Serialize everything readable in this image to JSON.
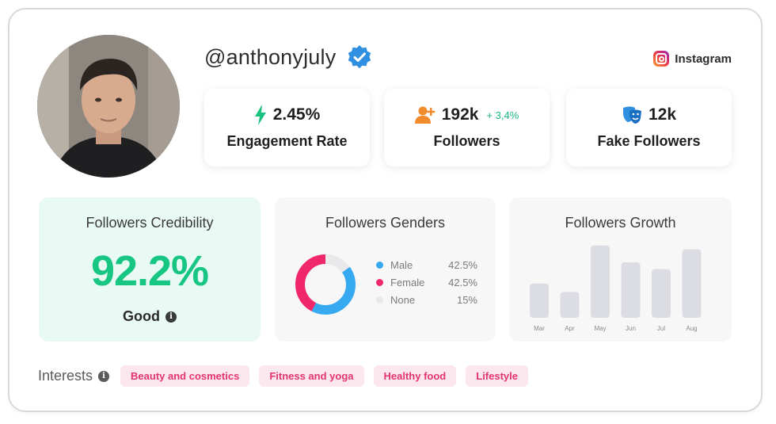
{
  "profile": {
    "handle": "@anthonyjuly",
    "verified": true,
    "platform": "Instagram",
    "platform_icon": "instagram-icon"
  },
  "stats": [
    {
      "value": "2.45%",
      "label": "Engagement Rate",
      "icon": "lightning-icon",
      "icon_color": "#19c27e"
    },
    {
      "value": "192k",
      "delta": "+ 3,4%",
      "label": "Followers",
      "icon": "add-user-icon",
      "icon_color": "#f28a2e"
    },
    {
      "value": "12k",
      "label": "Fake Followers",
      "icon": "theater-masks-icon",
      "icon_color": "#2f8fe0"
    }
  ],
  "credibility": {
    "title": "Followers Credibility",
    "value": "92.2%",
    "rating": "Good",
    "accent": "#18c683"
  },
  "genders": {
    "title": "Followers Genders",
    "items": [
      {
        "name": "Male",
        "value": "42.5%",
        "percent": 42.5,
        "color": "#36a9f0"
      },
      {
        "name": "Female",
        "value": "42.5%",
        "percent": 42.5,
        "color": "#f0286b"
      },
      {
        "name": "None",
        "value": "15%",
        "percent": 15,
        "color": "#e9e9ec"
      }
    ]
  },
  "growth": {
    "title": "Followers Growth",
    "chart_data": {
      "type": "bar",
      "categories": [
        "Mar",
        "Apr",
        "May",
        "Jun",
        "Jul",
        "Aug"
      ],
      "values": [
        45,
        34,
        95,
        73,
        64,
        90
      ],
      "ylim": [
        0,
        100
      ],
      "bar_color": "#dcdce3"
    }
  },
  "interests": {
    "label": "Interests",
    "chips": [
      "Beauty and cosmetics",
      "Fitness and yoga",
      "Healthy food",
      "Lifestyle"
    ]
  }
}
